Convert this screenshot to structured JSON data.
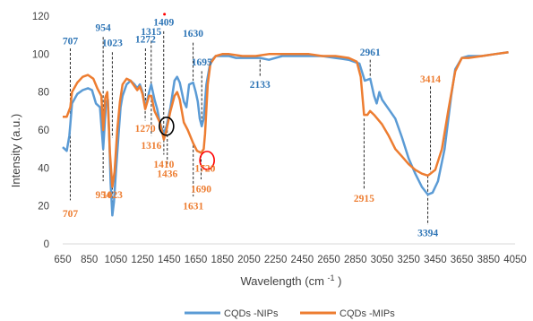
{
  "chart_data": {
    "type": "line",
    "title": "",
    "xlabel": "Wavelength (cm -1)",
    "xlabel_main": "Wavelength (cm",
    "xlabel_sup": "-1",
    "xlabel_close": ")",
    "ylabel": "Intensity (a.u.)",
    "xlim": [
      650,
      4050
    ],
    "ylim": [
      0,
      120
    ],
    "x_ticks": [
      650,
      850,
      1050,
      1250,
      1450,
      1650,
      1850,
      2050,
      2250,
      2450,
      2650,
      2850,
      3050,
      3250,
      3450,
      3650,
      3850,
      4050
    ],
    "y_ticks": [
      0,
      20,
      40,
      60,
      80,
      100,
      120
    ],
    "grid": false,
    "legend_position": "bottom",
    "series": [
      {
        "name": "CQDs -NIPs",
        "color": "#5b9bd5",
        "points": [
          [
            650,
            51
          ],
          [
            680,
            49
          ],
          [
            700,
            57
          ],
          [
            707,
            63
          ],
          [
            720,
            74
          ],
          [
            760,
            79
          ],
          [
            800,
            81
          ],
          [
            840,
            82
          ],
          [
            870,
            81
          ],
          [
            900,
            74
          ],
          [
            930,
            72
          ],
          [
            954,
            50
          ],
          [
            975,
            74
          ],
          [
            990,
            76
          ],
          [
            1000,
            56
          ],
          [
            1010,
            32
          ],
          [
            1023,
            15
          ],
          [
            1035,
            22
          ],
          [
            1050,
            38
          ],
          [
            1070,
            58
          ],
          [
            1085,
            72
          ],
          [
            1100,
            78
          ],
          [
            1130,
            84
          ],
          [
            1160,
            86
          ],
          [
            1190,
            84
          ],
          [
            1210,
            82
          ],
          [
            1230,
            84
          ],
          [
            1250,
            80
          ],
          [
            1272,
            72
          ],
          [
            1300,
            80
          ],
          [
            1315,
            84
          ],
          [
            1340,
            76
          ],
          [
            1360,
            71
          ],
          [
            1380,
            64
          ],
          [
            1409,
            58
          ],
          [
            1430,
            62
          ],
          [
            1460,
            72
          ],
          [
            1490,
            86
          ],
          [
            1510,
            88
          ],
          [
            1530,
            85
          ],
          [
            1560,
            75
          ],
          [
            1580,
            72
          ],
          [
            1600,
            84
          ],
          [
            1630,
            85
          ],
          [
            1650,
            80
          ],
          [
            1665,
            75
          ],
          [
            1680,
            66
          ],
          [
            1695,
            62
          ],
          [
            1710,
            66
          ],
          [
            1730,
            84
          ],
          [
            1760,
            96
          ],
          [
            1800,
            99
          ],
          [
            1850,
            99
          ],
          [
            1900,
            99
          ],
          [
            1950,
            98
          ],
          [
            2000,
            98
          ],
          [
            2133,
            98
          ],
          [
            2200,
            97
          ],
          [
            2300,
            99
          ],
          [
            2400,
            99
          ],
          [
            2500,
            99
          ],
          [
            2600,
            99
          ],
          [
            2700,
            98
          ],
          [
            2800,
            97
          ],
          [
            2880,
            95
          ],
          [
            2920,
            86
          ],
          [
            2961,
            87
          ],
          [
            2990,
            78
          ],
          [
            3010,
            74
          ],
          [
            3030,
            80
          ],
          [
            3050,
            76
          ],
          [
            3100,
            71
          ],
          [
            3150,
            66
          ],
          [
            3200,
            56
          ],
          [
            3250,
            45
          ],
          [
            3300,
            37
          ],
          [
            3350,
            30
          ],
          [
            3394,
            26
          ],
          [
            3430,
            27
          ],
          [
            3470,
            33
          ],
          [
            3520,
            50
          ],
          [
            3570,
            78
          ],
          [
            3600,
            92
          ],
          [
            3650,
            98
          ],
          [
            3700,
            99
          ],
          [
            3800,
            99
          ],
          [
            3900,
            100
          ],
          [
            4000,
            101
          ]
        ]
      },
      {
        "name": "CQDs -MIPs",
        "color": "#ed7d31",
        "points": [
          [
            650,
            67
          ],
          [
            680,
            67
          ],
          [
            707,
            72
          ],
          [
            720,
            80
          ],
          [
            760,
            85
          ],
          [
            800,
            88
          ],
          [
            840,
            89
          ],
          [
            880,
            87
          ],
          [
            910,
            82
          ],
          [
            940,
            78
          ],
          [
            954,
            60
          ],
          [
            970,
            77
          ],
          [
            985,
            80
          ],
          [
            995,
            66
          ],
          [
            1005,
            48
          ],
          [
            1023,
            30
          ],
          [
            1040,
            38
          ],
          [
            1060,
            60
          ],
          [
            1080,
            75
          ],
          [
            1100,
            84
          ],
          [
            1130,
            87
          ],
          [
            1160,
            86
          ],
          [
            1190,
            83
          ],
          [
            1210,
            81
          ],
          [
            1230,
            83
          ],
          [
            1250,
            79
          ],
          [
            1270,
            71
          ],
          [
            1300,
            78
          ],
          [
            1316,
            78
          ],
          [
            1340,
            70
          ],
          [
            1360,
            67
          ],
          [
            1380,
            64
          ],
          [
            1410,
            55
          ],
          [
            1430,
            60
          ],
          [
            1436,
            62
          ],
          [
            1460,
            70
          ],
          [
            1490,
            78
          ],
          [
            1510,
            80
          ],
          [
            1530,
            76
          ],
          [
            1560,
            64
          ],
          [
            1590,
            60
          ],
          [
            1631,
            53
          ],
          [
            1660,
            49
          ],
          [
            1690,
            48
          ],
          [
            1710,
            50
          ],
          [
            1720,
            58
          ],
          [
            1740,
            84
          ],
          [
            1760,
            95
          ],
          [
            1800,
            99
          ],
          [
            1850,
            100
          ],
          [
            1900,
            100
          ],
          [
            2000,
            99
          ],
          [
            2100,
            99
          ],
          [
            2200,
            100
          ],
          [
            2300,
            100
          ],
          [
            2400,
            100
          ],
          [
            2500,
            100
          ],
          [
            2600,
            99
          ],
          [
            2700,
            99
          ],
          [
            2800,
            98
          ],
          [
            2860,
            96
          ],
          [
            2890,
            88
          ],
          [
            2915,
            68
          ],
          [
            2940,
            68
          ],
          [
            2960,
            70
          ],
          [
            2990,
            68
          ],
          [
            3050,
            63
          ],
          [
            3100,
            57
          ],
          [
            3150,
            50
          ],
          [
            3200,
            46
          ],
          [
            3250,
            42
          ],
          [
            3300,
            39
          ],
          [
            3350,
            37
          ],
          [
            3394,
            36
          ],
          [
            3414,
            37
          ],
          [
            3450,
            39
          ],
          [
            3500,
            50
          ],
          [
            3550,
            71
          ],
          [
            3600,
            91
          ],
          [
            3650,
            98
          ],
          [
            3700,
            98
          ],
          [
            3800,
            99
          ],
          [
            3900,
            100
          ],
          [
            4000,
            101
          ]
        ]
      }
    ],
    "annotations": [
      {
        "text": "707",
        "x": 707,
        "y_label": 107,
        "line_from": 103,
        "line_to": 64,
        "color": "#2e75b6"
      },
      {
        "text": "954",
        "x": 954,
        "y_label": 114,
        "line_from": 109,
        "line_to": 62,
        "color": "#2e75b6"
      },
      {
        "text": "1023",
        "x": 1023,
        "y_label": 106,
        "line_from": 101,
        "line_to": 56,
        "color": "#2e75b6"
      },
      {
        "text": "1272",
        "x": 1272,
        "y_label": 108,
        "line_from": 103,
        "line_to": 72,
        "color": "#2e75b6"
      },
      {
        "text": "1315",
        "x": 1315,
        "y_label": 112,
        "line_from": 107,
        "line_to": 84,
        "color": "#2e75b6"
      },
      {
        "text": "1409",
        "x": 1409,
        "y_label": 117,
        "line_from": 112,
        "line_to": 58,
        "color": "#2e75b6"
      },
      {
        "text": "1630",
        "x": 1630,
        "y_label": 111,
        "line_from": 106,
        "line_to": 86,
        "color": "#2e75b6"
      },
      {
        "text": "1695",
        "x": 1695,
        "y_label": 96,
        "line_from": 91,
        "line_to": 62,
        "color": "#2e75b6"
      },
      {
        "text": "2133",
        "x": 2133,
        "y_label": 84,
        "line_from": 97,
        "line_to": 88,
        "color": "#2e75b6"
      },
      {
        "text": "2961",
        "x": 2961,
        "y_label": 101,
        "line_from": 97,
        "line_to": 88,
        "color": "#2e75b6"
      },
      {
        "text": "3394",
        "x": 3394,
        "y_label": 6,
        "line_from": 36,
        "line_to": 10,
        "color": "#2e75b6"
      },
      {
        "text": "707",
        "x": 707,
        "y_label": 16,
        "line_from": 64,
        "line_to": 23,
        "color": "#ed7d31"
      },
      {
        "text": "954",
        "x": 954,
        "y_label": 26,
        "line_from": 60,
        "line_to": 33,
        "color": "#ed7d31"
      },
      {
        "text": "1023",
        "x": 1023,
        "y_label": 26,
        "line_from": 30,
        "line_to": 18,
        "color": "#ed7d31"
      },
      {
        "text": "1270",
        "x": 1270,
        "y_label": 61,
        "line_from": 70,
        "line_to": 65,
        "color": "#ed7d31"
      },
      {
        "text": "1316",
        "x": 1316,
        "y_label": 52,
        "line_from": 76,
        "line_to": 57,
        "color": "#ed7d31"
      },
      {
        "text": "1410",
        "x": 1410,
        "y_label": 42,
        "line_from": 55,
        "line_to": 47,
        "color": "#ed7d31"
      },
      {
        "text": "1436",
        "x": 1436,
        "y_label": 37,
        "line_from": 60,
        "line_to": 42,
        "color": "#ed7d31"
      },
      {
        "text": "1631",
        "x": 1631,
        "y_label": 20,
        "line_from": 52,
        "line_to": 25,
        "color": "#ed7d31"
      },
      {
        "text": "1690",
        "x": 1690,
        "y_label": 29,
        "line_from": 47,
        "line_to": 34,
        "color": "#ed7d31"
      },
      {
        "text": "1720",
        "x": 1720,
        "y_label": 40,
        "line_from": null,
        "line_to": null,
        "color": "#ed7d31"
      },
      {
        "text": "2915",
        "x": 2915,
        "y_label": 24,
        "line_from": 66,
        "line_to": 29,
        "color": "#ed7d31"
      },
      {
        "text": "3414",
        "x": 3414,
        "y_label": 87,
        "line_from": 83,
        "line_to": 38,
        "color": "#ed7d31"
      }
    ],
    "circles": [
      {
        "x": 1430,
        "y": 62,
        "color": "#000000"
      },
      {
        "x": 1735,
        "y": 44,
        "color": "#ff0000"
      }
    ],
    "marker_dot": {
      "x": 1415,
      "y": 121,
      "color": "#ff0000"
    }
  }
}
